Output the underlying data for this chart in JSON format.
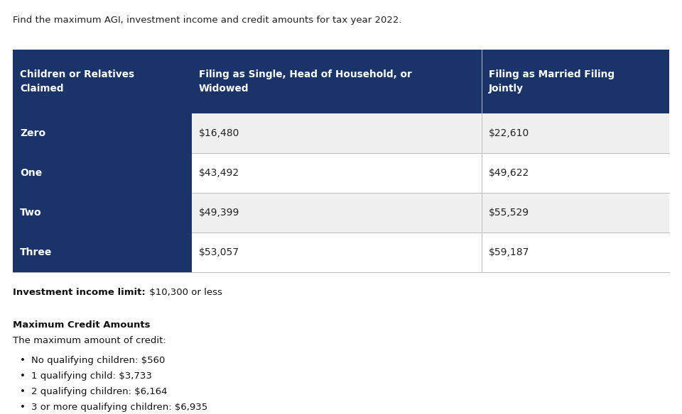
{
  "subtitle": "Find the maximum AGI, investment income and credit amounts for tax year 2022.",
  "header_bg": "#1a3368",
  "header_text_color": "#ffffff",
  "row_labels": [
    "Zero",
    "One",
    "Two",
    "Three"
  ],
  "col1_header": "Children or Relatives\nClaimed",
  "col2_header": "Filing as Single, Head of Household, or\nWidowed",
  "col3_header": "Filing as Married Filing\nJointly",
  "col2_values": [
    "$16,480",
    "$43,492",
    "$49,399",
    "$53,057"
  ],
  "col3_values": [
    "$22,610",
    "$49,622",
    "$55,529",
    "$59,187"
  ],
  "row_alt_colors": [
    "#f0f0f0",
    "#ffffff",
    "#f0f0f0",
    "#ffffff"
  ],
  "row_label_bg": "#1a3368",
  "row_label_text": "#ffffff",
  "investment_income_bold": "Investment income limit:",
  "investment_income_rest": " $10,300 or less",
  "credit_title": "Maximum Credit Amounts",
  "credit_subtitle": "The maximum amount of credit:",
  "bullet_items": [
    "No qualifying children: $560",
    "1 qualifying child: $3,733",
    "2 qualifying children: $6,164",
    "3 or more qualifying children: $6,935"
  ],
  "background_color": "#ffffff",
  "divider_color": "#bbbbbb",
  "fig_width": 9.6,
  "fig_height": 5.84,
  "dpi": 100
}
